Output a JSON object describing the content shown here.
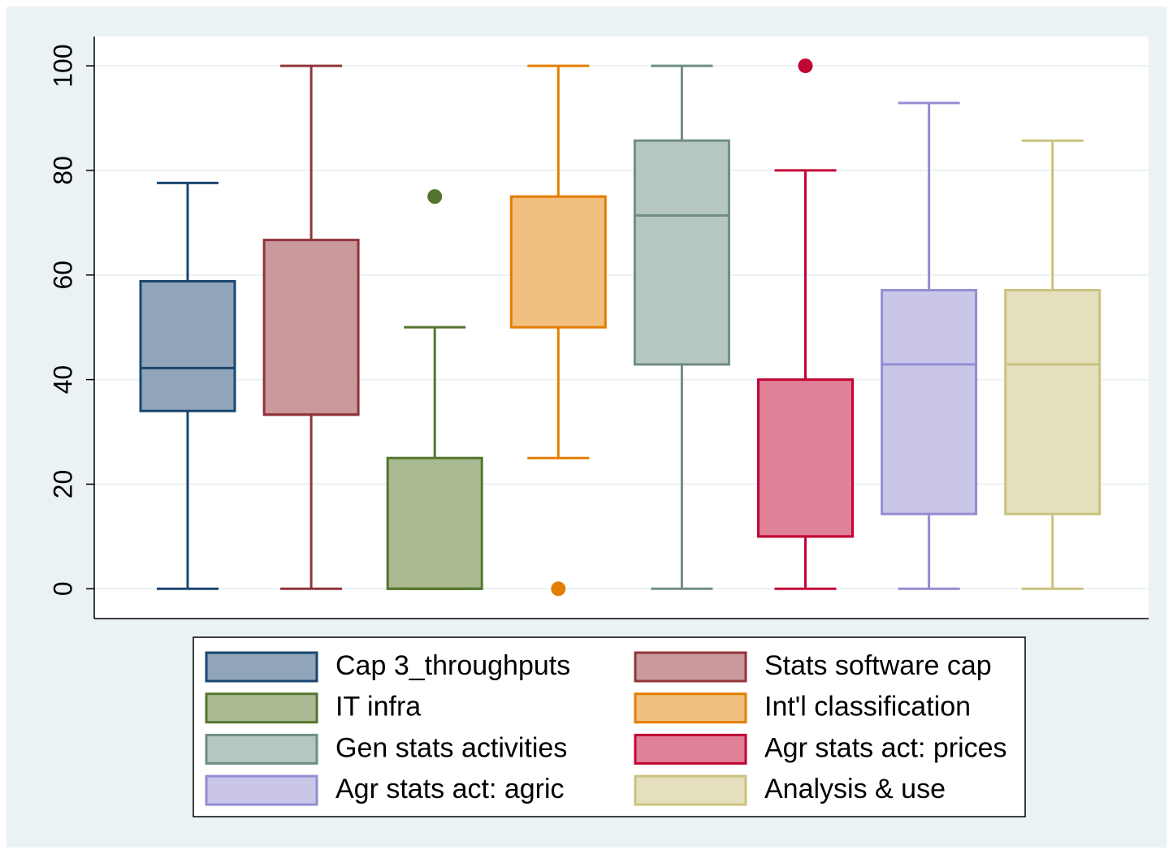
{
  "chart_data": {
    "type": "box",
    "ylim": [
      -5.7,
      105.6
    ],
    "yticks": [
      0,
      20,
      40,
      60,
      80,
      100
    ],
    "grid": true,
    "legend": "bottom",
    "series": [
      {
        "name": "Cap 3_throughputs",
        "color": "#1a476f",
        "fill": "#90a4ba",
        "whislo": 0,
        "q1": 34,
        "med": 42.2,
        "q3": 58.8,
        "whishi": 77.6,
        "outliers": []
      },
      {
        "name": "Stats software cap",
        "color": "#90353b",
        "fill": "#c9999c",
        "whislo": 0,
        "q1": 33.3,
        "med": 33.3,
        "q3": 66.7,
        "whishi": 100,
        "outliers": []
      },
      {
        "name": "IT infra",
        "color": "#55752f",
        "fill": "#aabb94",
        "whislo": 0,
        "q1": 0,
        "med": 0,
        "q3": 25,
        "whishi": 50,
        "outliers": [
          75
        ]
      },
      {
        "name": "Int'l classification",
        "color": "#e37e00",
        "fill": "#f1bf7f",
        "whislo": 25,
        "q1": 50,
        "med": 75,
        "q3": 75,
        "whishi": 100,
        "outliers": [
          0
        ]
      },
      {
        "name": "Gen stats activities",
        "color": "#6e8e84",
        "fill": "#b6c6c1",
        "whislo": 0,
        "q1": 42.9,
        "med": 71.4,
        "q3": 85.7,
        "whishi": 100,
        "outliers": []
      },
      {
        "name": "Agr stats act: prices",
        "color": "#c10534",
        "fill": "#e08199",
        "whislo": 0,
        "q1": 10,
        "med": 10,
        "q3": 40,
        "whishi": 80,
        "outliers": [
          100
        ]
      },
      {
        "name": "Agr stats act: agric",
        "color": "#938dd2",
        "fill": "#c9c6e8",
        "whislo": 0,
        "q1": 14.3,
        "med": 42.9,
        "q3": 57.1,
        "whishi": 92.9,
        "outliers": []
      },
      {
        "name": "Analysis & use",
        "color": "#cac27e",
        "fill": "#e4e0be",
        "whislo": 0,
        "q1": 14.3,
        "med": 42.9,
        "q3": 57.1,
        "whishi": 85.7,
        "outliers": []
      }
    ]
  }
}
